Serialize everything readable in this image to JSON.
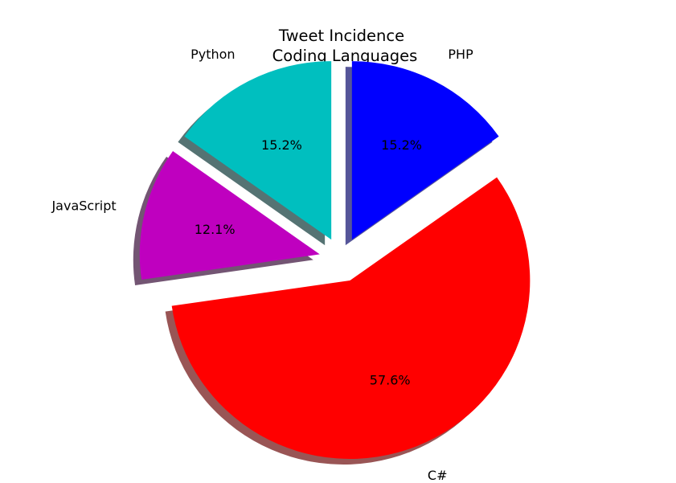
{
  "chart_data": {
    "type": "pie",
    "title_lines": [
      "Tweet Incidence",
      "Coding Languages"
    ],
    "slices": [
      {
        "label": "PHP",
        "value": 15.2,
        "pct_label": "15.2%",
        "color": "#0000ff",
        "shadow_color": "#555599",
        "exploded": true
      },
      {
        "label": "C#",
        "value": 57.6,
        "pct_label": "57.6%",
        "color": "#ff0000",
        "shadow_color": "#995555",
        "exploded": true
      },
      {
        "label": "JavaScript",
        "value": 12.1,
        "pct_label": "12.1%",
        "color": "#bf00bf",
        "shadow_color": "#735573",
        "exploded": true
      },
      {
        "label": "Python",
        "value": 15.2,
        "pct_label": "15.2%",
        "color": "#00bfbf",
        "shadow_color": "#557373",
        "exploded": true
      }
    ],
    "start_angle_deg": 90,
    "direction": "clockwise",
    "shadow": true,
    "legend": "none"
  }
}
